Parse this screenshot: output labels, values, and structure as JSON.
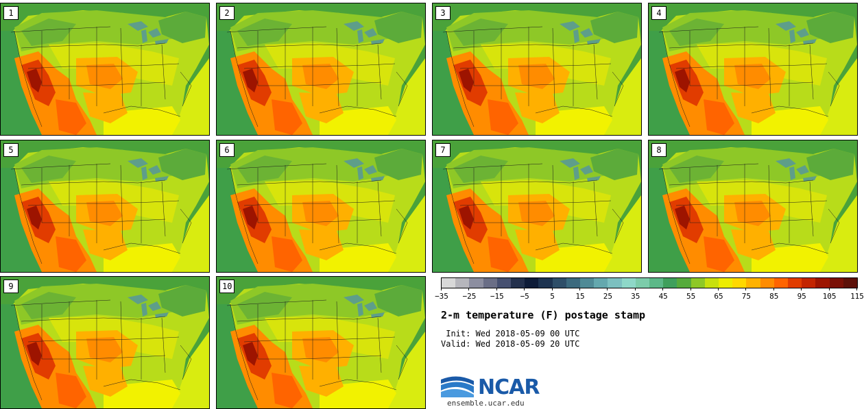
{
  "panels": [
    "1",
    "2",
    "3",
    "4",
    "5",
    "6",
    "7",
    "8",
    "9",
    "10"
  ],
  "colorbar": {
    "colors": [
      "#d8d8d8",
      "#b6b6bc",
      "#8c8ea0",
      "#6a6e86",
      "#465070",
      "#23304c",
      "#0e1c38",
      "#1d3350",
      "#2e4e68",
      "#3c6a7e",
      "#4f8a96",
      "#64a8ae",
      "#7cc0c0",
      "#8ed8c8",
      "#7cccaa",
      "#5cb888",
      "#3f9f5c",
      "#56ab3c",
      "#8ec827",
      "#c8e00e",
      "#ecec00",
      "#ffd800",
      "#ffb200",
      "#ff8c00",
      "#ff6400",
      "#e13c00",
      "#c32400",
      "#9d1400",
      "#7a1006",
      "#5c1008"
    ],
    "tick_labels": [
      "−35",
      "−25",
      "−15",
      "−5",
      "5",
      "15",
      "25",
      "35",
      "45",
      "55",
      "65",
      "75",
      "85",
      "95",
      "105",
      "115"
    ]
  },
  "title": "2-m temperature (F) postage stamp",
  "init": " Init: Wed 2018-05-09 00 UTC",
  "valid": "Valid: Wed 2018-05-09 20 UTC",
  "logo_text": "NCAR",
  "site": "ensemble.ucar.edu"
}
